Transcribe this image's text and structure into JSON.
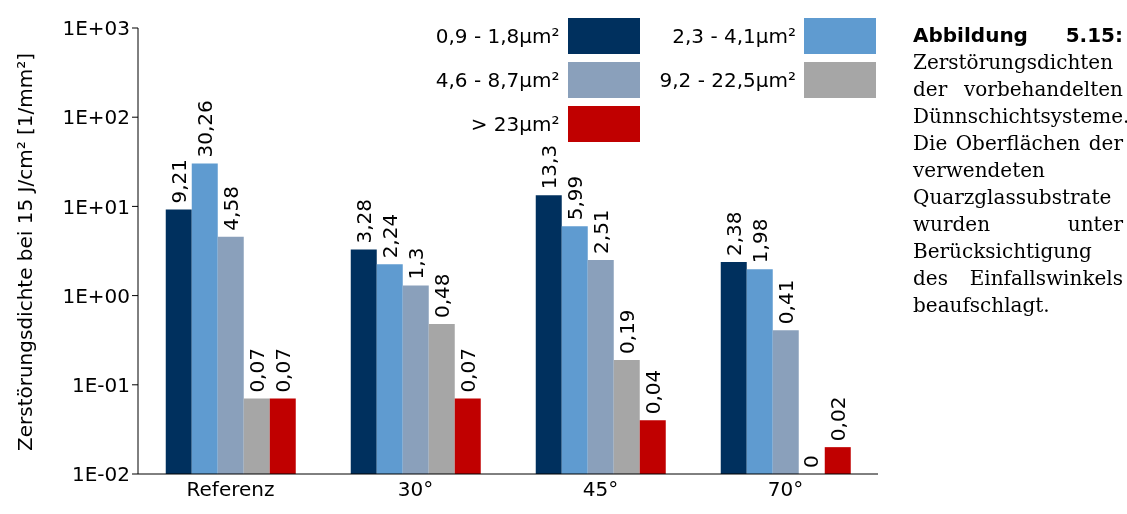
{
  "chart_data": {
    "type": "bar",
    "ylabel": "Zerstörungsdichte bei 15 J/cm² [1/mm²]",
    "categories": [
      "Referenz",
      "30°",
      "45°",
      "70°"
    ],
    "series": [
      {
        "name": "0,9 - 1,8µm²",
        "color": "#00305e",
        "values": [
          9.21,
          3.28,
          13.3,
          2.38
        ],
        "value_labels": [
          "9,21",
          "3,28",
          "13,3",
          "2,38"
        ]
      },
      {
        "name": "2,3 - 4,1µm²",
        "color": "#5f9bd0",
        "values": [
          30.26,
          2.24,
          5.99,
          1.98
        ],
        "value_labels": [
          "30,26",
          "2,24",
          "5,99",
          "1,98"
        ]
      },
      {
        "name": "4,6 - 8,7µm²",
        "color": "#8aa0bb",
        "values": [
          4.58,
          1.3,
          2.51,
          0.41
        ],
        "value_labels": [
          "4,58",
          "1,3",
          "2,51",
          "0,41"
        ]
      },
      {
        "name": "9,2 - 22,5µm²",
        "color": "#a6a6a6",
        "values": [
          0.07,
          0.48,
          0.19,
          null
        ],
        "value_labels": [
          "0,07",
          "0,48",
          "0,19",
          "0"
        ]
      },
      {
        "name": "> 23µm²",
        "color": "#c00000",
        "values": [
          0.07,
          0.07,
          0.04,
          0.02
        ],
        "value_labels": [
          "0,07",
          "0,07",
          "0,04",
          "0,02"
        ]
      }
    ],
    "log": "y",
    "ylim": [
      0.01,
      1000
    ],
    "yticks": [
      {
        "value": 0.01,
        "label": "1E-02"
      },
      {
        "value": 0.1,
        "label": "1E-01"
      },
      {
        "value": 1,
        "label": "1E+00"
      },
      {
        "value": 10,
        "label": "1E+01"
      },
      {
        "value": 100,
        "label": "1E+02"
      },
      {
        "value": 1000,
        "label": "1E+03"
      }
    ],
    "grid": false,
    "legend": "top right",
    "annotations": [
      "Abbildung 5.15:",
      "Zerstörungsdichten der vorbehandelten Dünnschichtsysteme. Die Oberflächen der verwendeten Quarzglassubstrate wurden unter Berücksichtigung des Einfallswinkels beaufschlagt."
    ]
  }
}
